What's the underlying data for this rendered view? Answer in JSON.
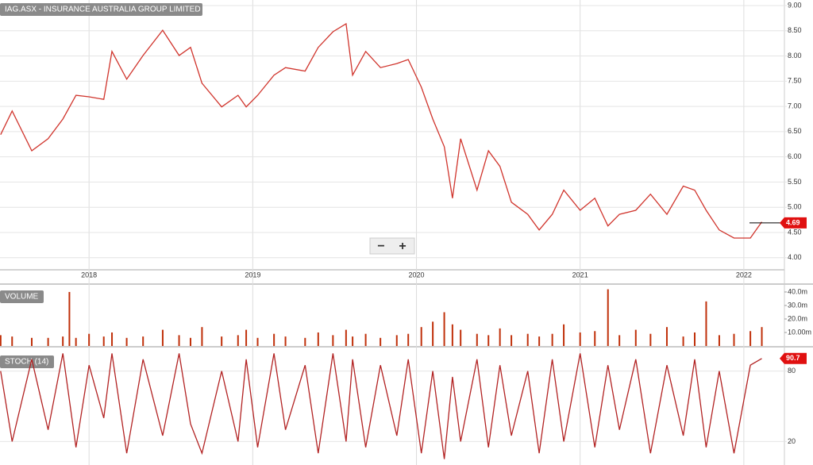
{
  "chart_data": [
    {
      "type": "line",
      "title": "IAG.ASX - INSURANCE AUSTRALIA GROUP LIMITED",
      "x": [
        2017.46,
        2017.53,
        2017.65,
        2017.75,
        2017.84,
        2017.92,
        2018.0,
        2018.09,
        2018.14,
        2018.23,
        2018.33,
        2018.45,
        2018.55,
        2018.62,
        2018.69,
        2018.81,
        2018.91,
        2018.96,
        2019.03,
        2019.13,
        2019.2,
        2019.32,
        2019.4,
        2019.49,
        2019.57,
        2019.61,
        2019.69,
        2019.78,
        2019.88,
        2019.95,
        2020.03,
        2020.1,
        2020.17,
        2020.22,
        2020.27,
        2020.37,
        2020.44,
        2020.51,
        2020.58,
        2020.68,
        2020.75,
        2020.83,
        2020.9,
        2021.0,
        2021.09,
        2021.17,
        2021.24,
        2021.34,
        2021.43,
        2021.53,
        2021.63,
        2021.7,
        2021.77,
        2021.85,
        2021.94,
        2022.04,
        2022.11
      ],
      "series": [
        {
          "color": "#d0342c",
          "values": [
            6.44,
            6.91,
            6.12,
            6.36,
            6.75,
            7.22,
            7.19,
            7.14,
            8.09,
            7.54,
            8.01,
            8.51,
            8.01,
            8.17,
            7.46,
            6.99,
            7.22,
            6.99,
            7.22,
            7.62,
            7.77,
            7.7,
            8.17,
            8.48,
            8.64,
            7.62,
            8.09,
            7.77,
            7.85,
            7.93,
            7.38,
            6.75,
            6.2,
            5.18,
            6.36,
            5.34,
            6.12,
            5.81,
            5.1,
            4.86,
            4.55,
            4.86,
            5.34,
            4.94,
            5.18,
            4.63,
            4.86,
            4.94,
            5.26,
            4.86,
            5.42,
            5.34,
            4.94,
            4.55,
            4.39,
            4.39,
            4.71
          ]
        }
      ],
      "last_value": 4.69,
      "xlim": [
        2017.456,
        2022.248
      ],
      "xticks": [
        2018,
        2019,
        2020,
        2021,
        2022
      ],
      "ylim": [
        3.76,
        9.11
      ],
      "yticks": [
        {
          "value": 4,
          "label": "4.00"
        },
        {
          "value": 4.5,
          "label": "4.50"
        },
        {
          "value": 5,
          "label": "5.00"
        },
        {
          "value": 5.5,
          "label": "5.50"
        },
        {
          "value": 6,
          "label": "6.00"
        },
        {
          "value": 6.5,
          "label": "6.50"
        },
        {
          "value": 7,
          "label": "7.00"
        },
        {
          "value": 7.5,
          "label": "7.50"
        },
        {
          "value": 8,
          "label": "8.00"
        },
        {
          "value": 8.5,
          "label": "8.50"
        },
        {
          "value": 9,
          "label": "9.00"
        }
      ],
      "grid": true
    },
    {
      "type": "bar",
      "title": "VOLUME",
      "x": [
        2017.46,
        2017.53,
        2017.65,
        2017.75,
        2017.84,
        2017.88,
        2017.92,
        2018.0,
        2018.09,
        2018.14,
        2018.23,
        2018.33,
        2018.45,
        2018.55,
        2018.62,
        2018.69,
        2018.81,
        2018.91,
        2018.96,
        2019.03,
        2019.13,
        2019.2,
        2019.32,
        2019.4,
        2019.49,
        2019.57,
        2019.61,
        2019.69,
        2019.78,
        2019.88,
        2019.95,
        2020.03,
        2020.1,
        2020.17,
        2020.22,
        2020.27,
        2020.37,
        2020.44,
        2020.51,
        2020.58,
        2020.68,
        2020.75,
        2020.83,
        2020.9,
        2021.0,
        2021.09,
        2021.17,
        2021.24,
        2021.34,
        2021.43,
        2021.53,
        2021.63,
        2021.7,
        2021.77,
        2021.85,
        2021.94,
        2022.04,
        2022.11
      ],
      "color": "#c0300a",
      "values": [
        8,
        7,
        6,
        6,
        7,
        40,
        6,
        9,
        7,
        10,
        6,
        7,
        12,
        8,
        6,
        14,
        7,
        8,
        12,
        6,
        9,
        7,
        6,
        10,
        8,
        12,
        7,
        9,
        6,
        8,
        9,
        14,
        18,
        25,
        16,
        12,
        9,
        8,
        13,
        8,
        9,
        7,
        9,
        16,
        10,
        11,
        42,
        8,
        12,
        9,
        14,
        7,
        10,
        33,
        8,
        9,
        11,
        14
      ],
      "xlim": [
        2017.456,
        2022.248
      ],
      "ylim": [
        0,
        43.5
      ],
      "yticks": [
        {
          "value": 10,
          "label": "10.00m"
        },
        {
          "value": 20,
          "label": "20.0m"
        },
        {
          "value": 30,
          "label": "30.0m"
        },
        {
          "value": 40,
          "label": "40.0m"
        }
      ]
    },
    {
      "type": "line",
      "title": "STOCH (14)",
      "x": [
        2017.46,
        2017.53,
        2017.65,
        2017.75,
        2017.84,
        2017.92,
        2018.0,
        2018.09,
        2018.14,
        2018.23,
        2018.33,
        2018.45,
        2018.55,
        2018.62,
        2018.69,
        2018.81,
        2018.91,
        2018.96,
        2019.03,
        2019.13,
        2019.2,
        2019.32,
        2019.4,
        2019.49,
        2019.57,
        2019.61,
        2019.69,
        2019.78,
        2019.88,
        2019.95,
        2020.03,
        2020.1,
        2020.17,
        2020.22,
        2020.27,
        2020.37,
        2020.44,
        2020.51,
        2020.58,
        2020.68,
        2020.75,
        2020.83,
        2020.9,
        2021.0,
        2021.09,
        2021.17,
        2021.24,
        2021.34,
        2021.43,
        2021.53,
        2021.63,
        2021.7,
        2021.77,
        2021.85,
        2021.94,
        2022.04,
        2022.11
      ],
      "series": [
        {
          "color": "#b22222",
          "values": [
            80,
            20,
            90,
            30,
            95,
            15,
            85,
            40,
            95,
            10,
            90,
            25,
            95,
            35,
            10,
            80,
            20,
            90,
            15,
            95,
            30,
            85,
            10,
            95,
            20,
            90,
            15,
            85,
            25,
            90,
            10,
            80,
            5,
            75,
            20,
            90,
            15,
            85,
            25,
            80,
            10,
            90,
            20,
            95,
            15,
            85,
            30,
            90,
            10,
            85,
            25,
            90,
            15,
            80,
            10,
            85,
            90.7
          ]
        }
      ],
      "last_value": 90.7,
      "xlim": [
        2017.456,
        2022.248
      ],
      "ylim": [
        0,
        100
      ],
      "yticks": [
        20,
        80
      ],
      "grid": true
    }
  ],
  "zoom_controls": [
    "−",
    "+"
  ]
}
